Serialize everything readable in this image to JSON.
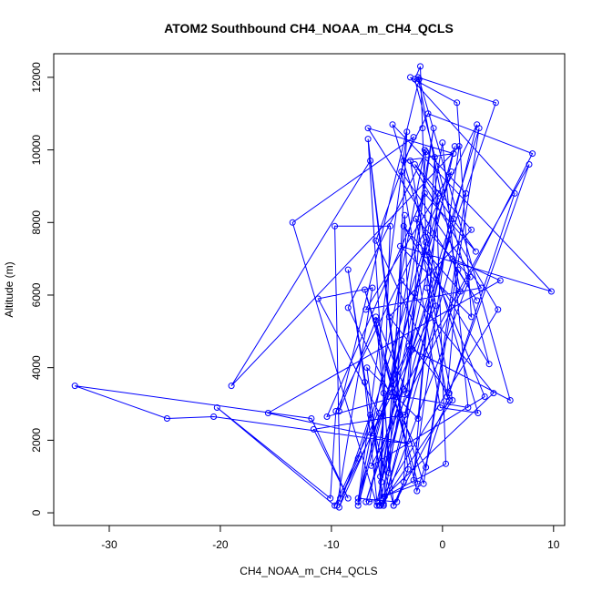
{
  "chart_data": {
    "type": "line",
    "title": "ATOM2 Southbound CH4_NOAA_m_CH4_QCLS",
    "xlabel": "CH4_NOAA_m_CH4_QCLS",
    "ylabel": "Altitude (m)",
    "xlim": [
      -35,
      11
    ],
    "ylim": [
      -350,
      12650
    ],
    "xticks": [
      -30,
      -20,
      -10,
      0,
      10
    ],
    "yticks": [
      0,
      2000,
      4000,
      6000,
      8000,
      10000,
      12000
    ],
    "series_color": "#0000ff",
    "series": [
      {
        "name": "CH4_NOAA_m_CH4_QCLS",
        "x": [
          -3,
          -9.3,
          -6.5,
          -4.4,
          -3.5,
          -2.5,
          -7.6,
          -5.7,
          -11.2,
          -6.3,
          -9.5,
          -7.6,
          -1.5,
          -5.6,
          -8.5,
          -7,
          -5.9,
          1.1,
          -7.6,
          -4.1,
          -3.1,
          -6.7,
          -4.8,
          -3.2,
          -7.6,
          -1.6,
          2.1,
          -1.5,
          -8.5,
          -1.5,
          -3.2,
          -6,
          -4.4,
          0.6,
          -6,
          -2.6,
          -13.5,
          -5.9,
          5,
          -2.9,
          -0.6,
          -9.2,
          -9.7,
          -4.7,
          -5.6,
          0.9,
          -2.4,
          2.5,
          -5.3,
          -6.8,
          -2.2,
          -0.4,
          -2.6,
          1.5,
          -19,
          -6.5,
          -3.8,
          -5.7,
          -5.3,
          2.3,
          0,
          -5.3,
          0.9,
          5.2,
          -15.7,
          -3,
          -20.6,
          -24.8,
          -33.1,
          -11.8,
          -8.5,
          -11.6,
          -3.4,
          3.1,
          -9.6,
          -10.1,
          -20.3,
          -9.7,
          -3,
          -3.4,
          -5.3,
          1,
          -5.5,
          -0.8,
          -6.6,
          -2.2,
          -7,
          -1.7,
          3.3,
          -6.9,
          -3.5,
          7.8,
          0.6,
          -4.8,
          2.6,
          -2.5,
          3,
          -1.6,
          -10.4,
          -4.1,
          -3.7,
          4.6,
          -5.2,
          0.3,
          -0.7,
          -1.4,
          0.4,
          1.4,
          3.1,
          -6.7,
          1,
          -3.5,
          -1.3,
          8.1,
          -6.4,
          3.8,
          -1.4,
          0.8,
          -6.9,
          3.5,
          -3.7,
          -0.2,
          3.2,
          -4.5,
          9.8,
          -3.8,
          2.6,
          1.3,
          -2.9,
          6.5,
          -2.3,
          -6,
          -9.3,
          -2.1,
          6.1,
          -2.7,
          4.8,
          -2.2,
          1.6,
          -3.5,
          4.2,
          -2.5,
          -2,
          -1.8,
          -1.5
        ],
        "y": [
          4500,
          150,
          2700,
          200,
          850,
          6050,
          200,
          2750,
          5900,
          6200,
          200,
          1500,
          7450,
          1000,
          6700,
          3600,
          300,
          10100,
          400,
          300,
          1200,
          10300,
          1100,
          10500,
          300,
          10000,
          8800,
          1250,
          5650,
          9950,
          3300,
          5400,
          200,
          3100,
          7500,
          10350,
          8000,
          200,
          5600,
          9700,
          5700,
          400,
          7900,
          7900,
          200,
          3100,
          8100,
          6500,
          200,
          4000,
          2600,
          8800,
          900,
          10100,
          3500,
          9700,
          2700,
          200,
          3300,
          2900,
          10200,
          250,
          7000,
          6400,
          2750,
          1900,
          2650,
          2600,
          3500,
          2600,
          400,
          2300,
          2700,
          10700,
          2800,
          400,
          2900,
          200,
          4600,
          8200,
          200,
          8100,
          850,
          10600,
          300,
          800,
          6150,
          800,
          10600,
          300,
          3400,
          9600,
          3300,
          5400,
          7800,
          9600,
          7200,
          8800,
          2650,
          3200,
          6400,
          3300,
          450,
          1350,
          9800,
          6200,
          3200,
          6700,
          5850,
          10600,
          9900,
          9700,
          11000,
          9900,
          1300,
          3200,
          7100,
          9400,
          5600,
          6200,
          9400,
          2900,
          2750,
          10700,
          6100,
          7350,
          5400,
          11300,
          12000,
          8800,
          600,
          5300,
          2800,
          11950,
          3100,
          4500,
          11300,
          12000,
          6100,
          7900,
          4100,
          11950,
          12300,
          10600,
          7600
        ]
      }
    ]
  }
}
